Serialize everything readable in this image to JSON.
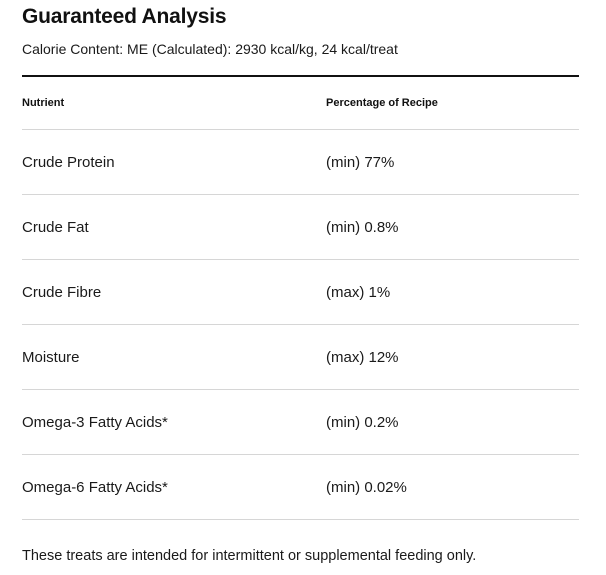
{
  "heading": {
    "title": "Guaranteed Analysis",
    "calorie_content": "Calorie Content: ME (Calculated): 2930 kcal/kg, 24 kcal/treat"
  },
  "table": {
    "columns": [
      "Nutrient",
      "Percentage of Recipe"
    ],
    "rows": [
      {
        "nutrient": "Crude Protein",
        "value": "(min) 77%"
      },
      {
        "nutrient": "Crude Fat",
        "value": "(min) 0.8%"
      },
      {
        "nutrient": "Crude Fibre",
        "value": "(max) 1%"
      },
      {
        "nutrient": "Moisture",
        "value": "(max) 12%"
      },
      {
        "nutrient": "Omega-3 Fatty Acids*",
        "value": "(min) 0.2%"
      },
      {
        "nutrient": "Omega-6 Fatty Acids*",
        "value": "(min) 0.02%"
      }
    ]
  },
  "footnote": "These treats are intended for intermittent or supplemental feeding only."
}
